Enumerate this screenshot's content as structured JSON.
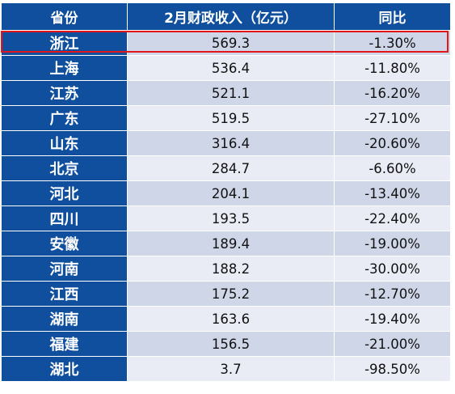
{
  "table": {
    "headers": [
      "省份",
      "2月财政收入（亿元）",
      "同比"
    ],
    "rows": [
      {
        "province": "浙江",
        "revenue": "569.3",
        "yoy": "-1.30%"
      },
      {
        "province": "上海",
        "revenue": "536.4",
        "yoy": "-11.80%"
      },
      {
        "province": "江苏",
        "revenue": "521.1",
        "yoy": "-16.20%"
      },
      {
        "province": "广东",
        "revenue": "519.5",
        "yoy": "-27.10%"
      },
      {
        "province": "山东",
        "revenue": "316.4",
        "yoy": "-20.60%"
      },
      {
        "province": "北京",
        "revenue": "284.7",
        "yoy": "-6.60%"
      },
      {
        "province": "河北",
        "revenue": "204.1",
        "yoy": "-13.40%"
      },
      {
        "province": "四川",
        "revenue": "193.5",
        "yoy": "-22.40%"
      },
      {
        "province": "安徽",
        "revenue": "189.4",
        "yoy": "-19.00%"
      },
      {
        "province": "河南",
        "revenue": "188.2",
        "yoy": "-30.00%"
      },
      {
        "province": "江西",
        "revenue": "175.2",
        "yoy": "-12.70%"
      },
      {
        "province": "湖南",
        "revenue": "163.6",
        "yoy": "-19.40%"
      },
      {
        "province": "福建",
        "revenue": "156.5",
        "yoy": "-21.00%"
      },
      {
        "province": "湖北",
        "revenue": "3.7",
        "yoy": "-98.50%"
      }
    ],
    "highlighted_row": 0
  },
  "colors": {
    "header_bg": "#0f4f9e",
    "row_odd": "#cfd6e8",
    "row_even": "#e9ecf5",
    "highlight_border": "#e0161b"
  }
}
